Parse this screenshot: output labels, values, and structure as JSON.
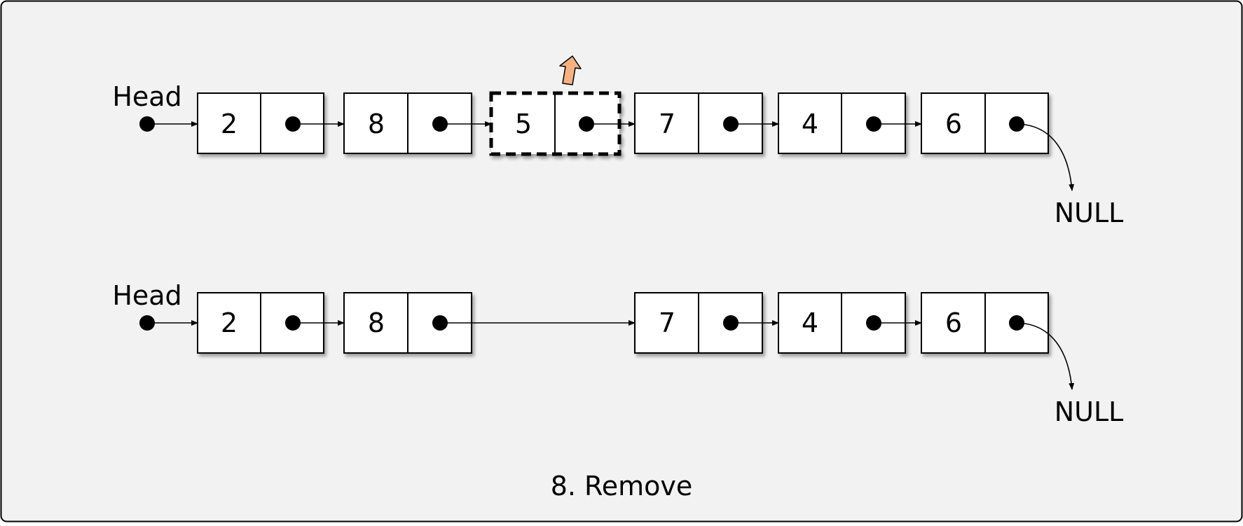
{
  "diagram": {
    "caption": "8. Remove",
    "colors": {
      "background": "#f2f2f2",
      "node_fill": "#ffffff",
      "stroke": "#000000",
      "highlight_arrow": "#f4b183"
    },
    "rows": [
      {
        "head_label": "Head",
        "null_label": "NULL",
        "nodes": [
          "2",
          "8",
          "5",
          "7",
          "4",
          "6"
        ],
        "removed_node": "5"
      },
      {
        "head_label": "Head",
        "null_label": "NULL",
        "nodes": [
          "2",
          "8",
          "7",
          "4",
          "6"
        ]
      }
    ]
  }
}
